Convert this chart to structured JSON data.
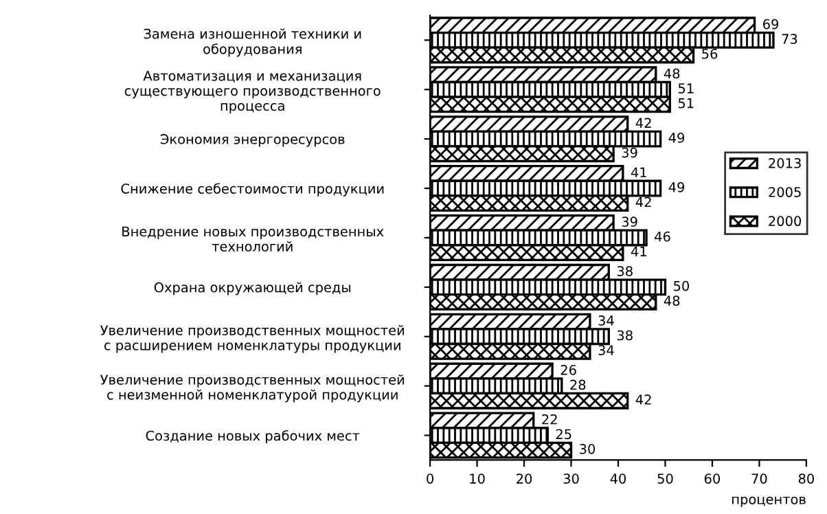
{
  "chart_data": {
    "type": "bar",
    "orientation": "horizontal",
    "xlabel": "процентов",
    "categories": [
      "Замена изношенной техники и\nоборудования",
      "Автоматизация и механизация\nсуществующего производственного\nпроцесса",
      "Экономия энергоресурсов",
      "Снижение себестоимости продукции",
      "Внедрение новых производственных\nтехнологий",
      "Охрана окружающей среды",
      "Увеличение производственных мощностей\nс расширением номенклатуры продукции",
      "Увеличение производственных мощностей\nс неизменной номенклатурой продукции",
      "Создание новых рабочих мест"
    ],
    "series": [
      {
        "name": "2013",
        "color": "#000000",
        "values": [
          69,
          48,
          42,
          41,
          39,
          38,
          34,
          26,
          22
        ]
      },
      {
        "name": "2005",
        "color": "#000000",
        "values": [
          73,
          51,
          49,
          49,
          46,
          50,
          38,
          28,
          25
        ]
      },
      {
        "name": "2000",
        "color": "#000000",
        "values": [
          56,
          51,
          39,
          42,
          41,
          48,
          34,
          42,
          30
        ]
      }
    ],
    "xlim": [
      0,
      80
    ],
    "xticks": [
      0,
      10,
      20,
      30,
      40,
      50,
      60,
      70,
      80
    ],
    "data_labels": true,
    "legend": "right",
    "grid": false
  }
}
